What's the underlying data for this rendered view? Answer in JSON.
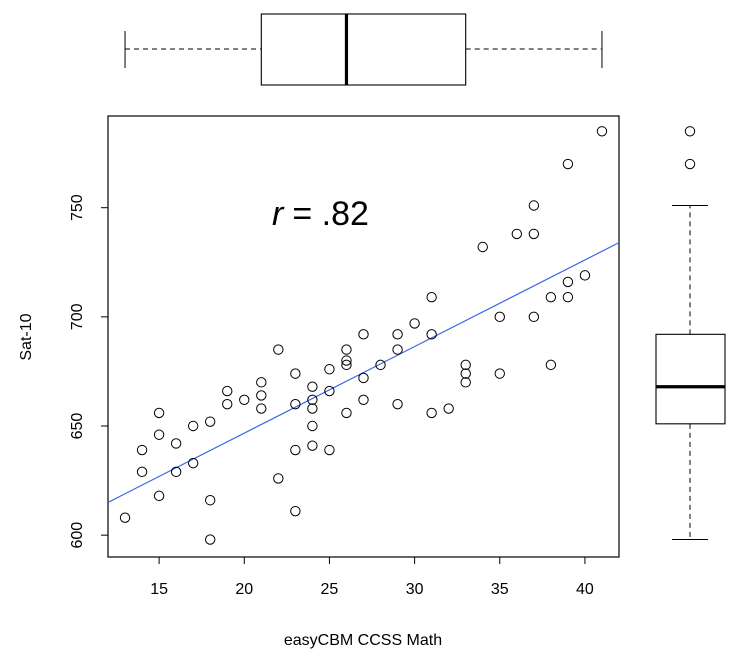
{
  "chart_data": [
    {
      "type": "scatter",
      "xlabel": "easyCBM CCSS Math",
      "ylabel": "Sat-10",
      "xlim": [
        12,
        42
      ],
      "ylim": [
        590,
        792
      ],
      "x_ticks": [
        "15",
        "20",
        "25",
        "30",
        "35",
        "40"
      ],
      "y_ticks": [
        "600",
        "650",
        "700",
        "750"
      ],
      "grid": false,
      "annotation": {
        "r_symbol": "r",
        "r_text": "= .82"
      },
      "points": [
        [
          13,
          608
        ],
        [
          14,
          639
        ],
        [
          14,
          629
        ],
        [
          15,
          656
        ],
        [
          15,
          646
        ],
        [
          15,
          618
        ],
        [
          16,
          642
        ],
        [
          16,
          629
        ],
        [
          17,
          650
        ],
        [
          17,
          633
        ],
        [
          18,
          652
        ],
        [
          18,
          616
        ],
        [
          18,
          598
        ],
        [
          19,
          666
        ],
        [
          19,
          660
        ],
        [
          20,
          662
        ],
        [
          21,
          670
        ],
        [
          21,
          664
        ],
        [
          21,
          658
        ],
        [
          22,
          685
        ],
        [
          22,
          626
        ],
        [
          23,
          674
        ],
        [
          23,
          660
        ],
        [
          23,
          639
        ],
        [
          23,
          611
        ],
        [
          24,
          668
        ],
        [
          24,
          662
        ],
        [
          24,
          658
        ],
        [
          24,
          650
        ],
        [
          24,
          641
        ],
        [
          25,
          676
        ],
        [
          25,
          666
        ],
        [
          25,
          639
        ],
        [
          26,
          685
        ],
        [
          26,
          680
        ],
        [
          26,
          678
        ],
        [
          26,
          656
        ],
        [
          27,
          692
        ],
        [
          27,
          672
        ],
        [
          27,
          662
        ],
        [
          28,
          678
        ],
        [
          29,
          692
        ],
        [
          29,
          685
        ],
        [
          29,
          660
        ],
        [
          30,
          697
        ],
        [
          31,
          709
        ],
        [
          31,
          692
        ],
        [
          31,
          656
        ],
        [
          32,
          658
        ],
        [
          33,
          678
        ],
        [
          33,
          674
        ],
        [
          33,
          670
        ],
        [
          34,
          732
        ],
        [
          35,
          700
        ],
        [
          35,
          674
        ],
        [
          36,
          738
        ],
        [
          37,
          751
        ],
        [
          37,
          738
        ],
        [
          37,
          700
        ],
        [
          38,
          709
        ],
        [
          38,
          678
        ],
        [
          39,
          770
        ],
        [
          39,
          716
        ],
        [
          39,
          709
        ],
        [
          40,
          719
        ],
        [
          41,
          785
        ]
      ],
      "regression_line": {
        "color": "#3a67e8",
        "x": [
          12,
          42
        ],
        "y": [
          615,
          734
        ]
      },
      "point_color": "#000000"
    },
    {
      "type": "boxplot",
      "orientation": "horizontal",
      "variable": "easyCBM CCSS Math",
      "min": 13,
      "q1": 21,
      "median": 26,
      "q3": 33,
      "max": 41,
      "outliers": []
    },
    {
      "type": "boxplot",
      "orientation": "vertical",
      "variable": "Sat-10",
      "min": 598,
      "q1": 651,
      "median": 668,
      "q3": 692,
      "max": 751,
      "outliers": [
        770,
        785
      ]
    }
  ]
}
